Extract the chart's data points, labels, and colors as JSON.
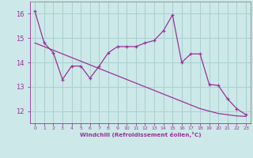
{
  "xlabel": "Windchill (Refroidissement éolien,°C)",
  "x": [
    0,
    1,
    2,
    3,
    4,
    5,
    6,
    7,
    8,
    9,
    10,
    11,
    12,
    13,
    14,
    15,
    16,
    17,
    18,
    19,
    20,
    21,
    22,
    23
  ],
  "y_jagged": [
    16.1,
    14.8,
    14.4,
    13.3,
    13.85,
    13.85,
    13.35,
    13.85,
    14.4,
    14.65,
    14.65,
    14.65,
    14.8,
    14.9,
    15.3,
    15.95,
    14.0,
    14.35,
    14.35,
    13.1,
    13.05,
    12.5,
    12.1,
    11.85
  ],
  "y_linear": [
    14.8,
    14.65,
    14.5,
    14.35,
    14.2,
    14.05,
    13.9,
    13.75,
    13.6,
    13.45,
    13.3,
    13.15,
    13.0,
    12.85,
    12.7,
    12.55,
    12.4,
    12.25,
    12.1,
    12.0,
    11.9,
    11.85,
    11.8,
    11.78
  ],
  "line_color": "#993399",
  "bg_color": "#cce8e8",
  "grid_color": "#aacfcf",
  "tick_color": "#993399",
  "spine_color": "#888888",
  "ylim": [
    11.5,
    16.5
  ],
  "yticks": [
    12,
    13,
    14,
    15,
    16
  ],
  "xlim": [
    -0.5,
    23.5
  ]
}
